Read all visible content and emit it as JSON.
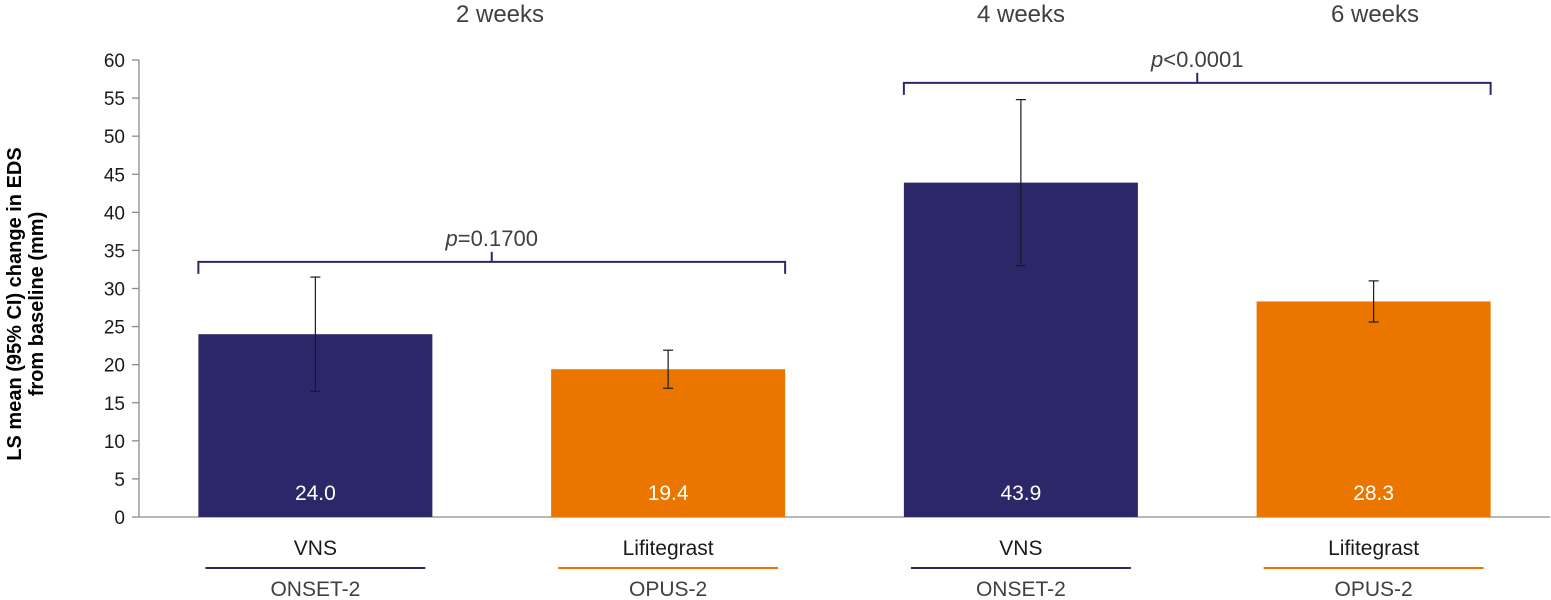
{
  "chart_data": {
    "type": "bar",
    "ylabel_line1": "LS mean (95% CI) change in EDS",
    "ylabel_line2": "from baseline (mm)",
    "ylim": [
      0,
      60
    ],
    "yticks": [
      0,
      5,
      10,
      15,
      20,
      25,
      30,
      35,
      40,
      45,
      50,
      55,
      60
    ],
    "timepoints": [
      "2 weeks",
      "4 weeks",
      "6 weeks"
    ],
    "bars": [
      {
        "category": "VNS",
        "study": "ONSET-2",
        "value": 24.0,
        "value_label": "24.0",
        "ci": [
          16.5,
          31.5
        ],
        "color": "#2c2769"
      },
      {
        "category": "Lifitegrast",
        "study": "OPUS-2",
        "value": 19.4,
        "value_label": "19.4",
        "ci": [
          16.9,
          21.9
        ],
        "color": "#ea7600"
      },
      {
        "category": "VNS",
        "study": "ONSET-2",
        "value": 43.9,
        "value_label": "43.9",
        "ci": [
          33.0,
          54.8
        ],
        "color": "#2c2769"
      },
      {
        "category": "Lifitegrast",
        "study": "OPUS-2",
        "value": 28.3,
        "value_label": "28.3",
        "ci": [
          25.6,
          31.0
        ],
        "color": "#ea7600"
      }
    ],
    "comparisons": [
      {
        "p_symbol": "p",
        "p_rest": "=0.1700",
        "between": [
          0,
          1
        ],
        "level": 33.5
      },
      {
        "p_symbol": "p",
        "p_rest": "<0.0001",
        "between": [
          2,
          3
        ],
        "level": 57.0
      }
    ],
    "grid": false,
    "legend": "none"
  },
  "colors": {
    "vns": "#2c2769",
    "lifitegrast": "#ea7600",
    "bracket": "#2c2769"
  }
}
